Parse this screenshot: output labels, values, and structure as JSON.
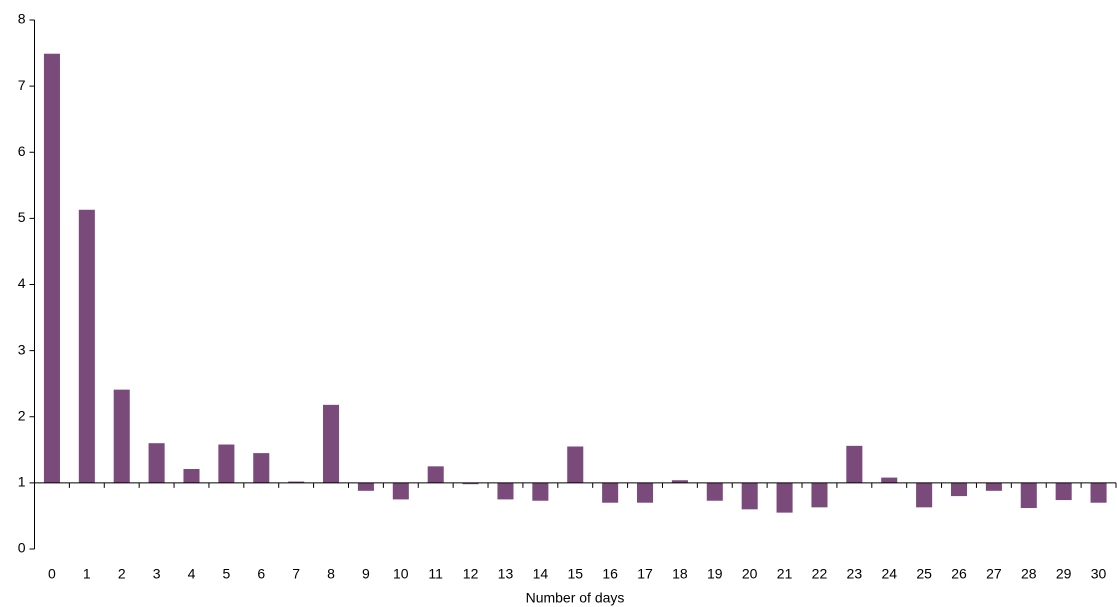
{
  "chart_data": {
    "type": "bar",
    "x_label": "Number of days",
    "categories": [
      "0",
      "1",
      "2",
      "3",
      "4",
      "5",
      "6",
      "7",
      "8",
      "9",
      "10",
      "11",
      "12",
      "13",
      "14",
      "15",
      "16",
      "17",
      "18",
      "19",
      "20",
      "21",
      "22",
      "23",
      "24",
      "25",
      "26",
      "27",
      "28",
      "29",
      "30"
    ],
    "values": [
      7.49,
      5.13,
      2.41,
      1.6,
      1.21,
      1.58,
      1.45,
      1.02,
      2.18,
      0.88,
      0.75,
      1.25,
      0.98,
      0.75,
      0.73,
      1.55,
      0.7,
      0.7,
      1.04,
      0.73,
      0.6,
      0.55,
      0.63,
      1.56,
      1.08,
      0.63,
      0.8,
      0.88,
      0.62,
      0.74,
      0.7
    ],
    "color": "#7a4a7a",
    "baseline": 1,
    "ylim": [
      0,
      8
    ],
    "yticks": [
      0,
      1,
      2,
      3,
      4,
      5,
      6,
      7,
      8
    ],
    "grid": false
  }
}
